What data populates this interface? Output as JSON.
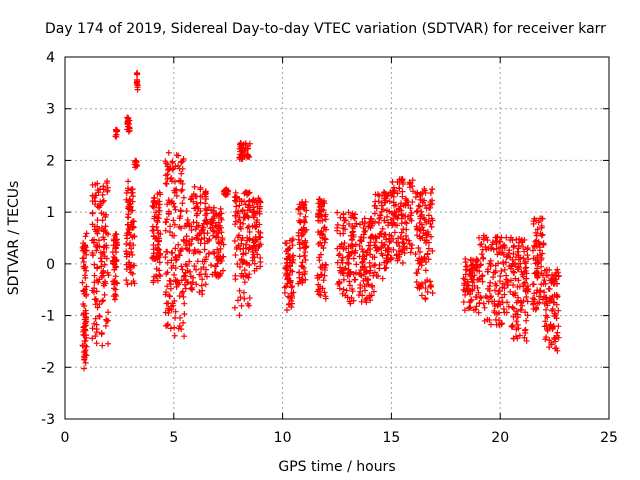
{
  "chart_data": {
    "type": "scatter",
    "title": "Day 174 of 2019, Sidereal Day-to-day VTEC variation (SDTVAR) for receiver karr",
    "xlabel": "GPS time / hours",
    "ylabel": "SDTVAR / TECUs",
    "xlim": [
      0,
      25
    ],
    "ylim": [
      -3,
      4
    ],
    "x_ticks": [
      "0",
      "5",
      "10",
      "15",
      "20",
      "25"
    ],
    "y_ticks": [
      "-3",
      "-2",
      "-1",
      "0",
      "1",
      "2",
      "3",
      "4"
    ],
    "grid": true,
    "marker": "+",
    "color": "#ff0000",
    "series": [
      {
        "name": "SDTVAR",
        "clusters": [
          {
            "x": [
              0.8,
              1.0
            ],
            "y": [
              -2.1,
              0.6
            ]
          },
          {
            "x": [
              1.25,
              2.0
            ],
            "y": [
              -1.6,
              1.6
            ]
          },
          {
            "x": [
              2.2,
              2.4
            ],
            "y": [
              -0.7,
              0.6
            ]
          },
          {
            "x": [
              2.3,
              2.4
            ],
            "y": [
              2.45,
              2.6
            ]
          },
          {
            "x": [
              2.8,
              3.2
            ],
            "y": [
              -0.4,
              1.6
            ]
          },
          {
            "x": [
              2.85,
              3.0
            ],
            "y": [
              2.5,
              2.85
            ]
          },
          {
            "x": [
              3.2,
              3.3
            ],
            "y": [
              1.85,
              2.0
            ]
          },
          {
            "x": [
              3.3,
              3.35
            ],
            "y": [
              3.35,
              3.7
            ]
          },
          {
            "x": [
              4.0,
              4.4
            ],
            "y": [
              -0.4,
              1.4
            ]
          },
          {
            "x": [
              4.6,
              5.5
            ],
            "y": [
              -1.4,
              2.2
            ]
          },
          {
            "x": [
              5.5,
              6.5
            ],
            "y": [
              -0.6,
              1.5
            ]
          },
          {
            "x": [
              6.5,
              7.3
            ],
            "y": [
              -0.3,
              1.1
            ]
          },
          {
            "x": [
              7.3,
              7.5
            ],
            "y": [
              1.3,
              1.45
            ]
          },
          {
            "x": [
              7.8,
              8.5
            ],
            "y": [
              -1.0,
              1.4
            ]
          },
          {
            "x": [
              8.0,
              8.5
            ],
            "y": [
              2.0,
              2.35
            ]
          },
          {
            "x": [
              8.6,
              9.0
            ],
            "y": [
              -0.2,
              1.3
            ]
          },
          {
            "x": [
              10.1,
              10.5
            ],
            "y": [
              -0.9,
              0.5
            ]
          },
          {
            "x": [
              10.7,
              11.1
            ],
            "y": [
              -0.4,
              1.2
            ]
          },
          {
            "x": [
              11.6,
              12.0
            ],
            "y": [
              -0.7,
              1.3
            ]
          },
          {
            "x": [
              12.5,
              13.4
            ],
            "y": [
              -0.8,
              1.0
            ]
          },
          {
            "x": [
              13.5,
              14.2
            ],
            "y": [
              -0.8,
              0.9
            ]
          },
          {
            "x": [
              14.2,
              15.0
            ],
            "y": [
              -0.3,
              1.4
            ]
          },
          {
            "x": [
              15.0,
              16.0
            ],
            "y": [
              0.0,
              1.65
            ]
          },
          {
            "x": [
              16.1,
              16.9
            ],
            "y": [
              -0.7,
              1.45
            ]
          },
          {
            "x": [
              18.3,
              19.0
            ],
            "y": [
              -0.9,
              0.1
            ]
          },
          {
            "x": [
              19.0,
              20.5
            ],
            "y": [
              -1.2,
              0.55
            ]
          },
          {
            "x": [
              20.5,
              21.3
            ],
            "y": [
              -1.5,
              0.5
            ]
          },
          {
            "x": [
              21.5,
              22.0
            ],
            "y": [
              -0.9,
              0.9
            ]
          },
          {
            "x": [
              22.0,
              22.7
            ],
            "y": [
              -1.7,
              -0.1
            ]
          }
        ]
      }
    ]
  }
}
